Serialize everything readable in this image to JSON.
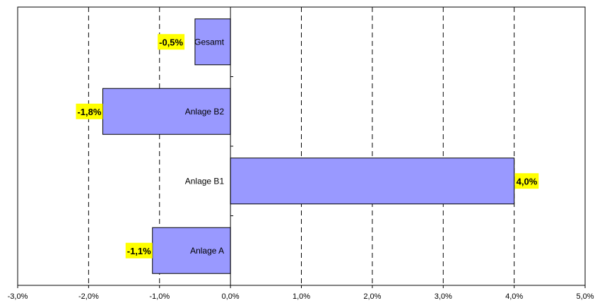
{
  "chart_data": {
    "type": "bar",
    "orientation": "horizontal",
    "title": "",
    "xlabel": "",
    "ylabel": "",
    "categories": [
      "Anlage A",
      "Anlage B1",
      "Anlage B2",
      "Gesamt"
    ],
    "values": [
      -1.1,
      4.0,
      -1.8,
      -0.5
    ],
    "data_labels": [
      "-1,1%",
      "4,0%",
      "-1,8%",
      "-0,5%"
    ],
    "xlim": [
      -3,
      5
    ],
    "x_ticks": [
      -3,
      -2,
      -1,
      0,
      1,
      2,
      3,
      4,
      5
    ],
    "x_tick_labels": [
      "-3,0%",
      "-2,0%",
      "-1,0%",
      "0,0%",
      "1,0%",
      "2,0%",
      "3,0%",
      "4,0%",
      "5,0%"
    ],
    "grid": "vertical dashed",
    "legend": "none",
    "colors": {
      "bar": "#9999ff",
      "bar_border": "#000000",
      "label_background": "#ffff00",
      "grid": "#000000"
    }
  }
}
